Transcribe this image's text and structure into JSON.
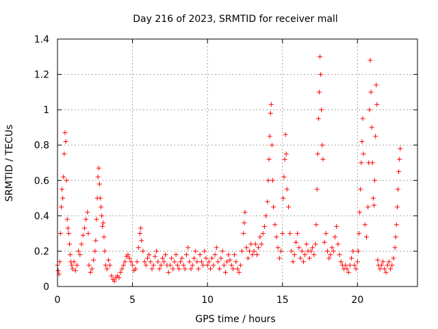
{
  "chart_data": {
    "type": "scatter",
    "title": "Day 216 of 2023, SRMTID for receiver mall",
    "xlabel": "GPS time / hours",
    "ylabel": "SRMTID / TECUs",
    "xlim": [
      0,
      24
    ],
    "ylim": [
      0,
      1.4
    ],
    "xticks": [
      0,
      5,
      10,
      15,
      20
    ],
    "yticks": [
      0,
      0.2,
      0.4,
      0.6,
      0.8,
      1,
      1.2,
      1.4
    ],
    "xtick_labels": [
      "0",
      "5",
      "10",
      "15",
      "20"
    ],
    "ytick_labels": [
      "0",
      "0.2",
      "0.4",
      "0.6",
      "0.8",
      "1",
      "1.2",
      "1.4"
    ],
    "grid": true,
    "marker": "+",
    "series": [
      {
        "name": "SRMTID",
        "color": "#ff0000",
        "points": [
          [
            0.0,
            0.12
          ],
          [
            0.05,
            0.09
          ],
          [
            0.1,
            0.07
          ],
          [
            0.15,
            0.14
          ],
          [
            0.2,
            0.3
          ],
          [
            0.25,
            0.45
          ],
          [
            0.3,
            0.55
          ],
          [
            0.35,
            0.5
          ],
          [
            0.4,
            0.62
          ],
          [
            0.45,
            0.75
          ],
          [
            0.5,
            0.87
          ],
          [
            0.55,
            0.82
          ],
          [
            0.6,
            0.6
          ],
          [
            0.65,
            0.38
          ],
          [
            0.7,
            0.33
          ],
          [
            0.75,
            0.3
          ],
          [
            0.8,
            0.24
          ],
          [
            0.85,
            0.18
          ],
          [
            0.9,
            0.14
          ],
          [
            0.95,
            0.12
          ],
          [
            1.0,
            0.1
          ],
          [
            1.1,
            0.14
          ],
          [
            1.2,
            0.09
          ],
          [
            1.3,
            0.12
          ],
          [
            1.4,
            0.2
          ],
          [
            1.5,
            0.18
          ],
          [
            1.6,
            0.24
          ],
          [
            1.7,
            0.29
          ],
          [
            1.8,
            0.33
          ],
          [
            1.9,
            0.38
          ],
          [
            2.0,
            0.42
          ],
          [
            2.05,
            0.3
          ],
          [
            2.1,
            0.12
          ],
          [
            2.2,
            0.08
          ],
          [
            2.3,
            0.1
          ],
          [
            2.4,
            0.15
          ],
          [
            2.5,
            0.2
          ],
          [
            2.55,
            0.26
          ],
          [
            2.6,
            0.38
          ],
          [
            2.65,
            0.5
          ],
          [
            2.7,
            0.62
          ],
          [
            2.75,
            0.67
          ],
          [
            2.8,
            0.58
          ],
          [
            2.85,
            0.5
          ],
          [
            2.9,
            0.45
          ],
          [
            2.95,
            0.4
          ],
          [
            3.0,
            0.34
          ],
          [
            3.05,
            0.36
          ],
          [
            3.1,
            0.28
          ],
          [
            3.15,
            0.2
          ],
          [
            3.2,
            0.12
          ],
          [
            3.3,
            0.1
          ],
          [
            3.4,
            0.15
          ],
          [
            3.5,
            0.12
          ],
          [
            3.6,
            0.06
          ],
          [
            3.7,
            0.04
          ],
          [
            3.8,
            0.03
          ],
          [
            3.9,
            0.05
          ],
          [
            4.0,
            0.06
          ],
          [
            4.1,
            0.05
          ],
          [
            4.2,
            0.08
          ],
          [
            4.3,
            0.1
          ],
          [
            4.4,
            0.12
          ],
          [
            4.5,
            0.14
          ],
          [
            4.6,
            0.17
          ],
          [
            4.7,
            0.18
          ],
          [
            4.8,
            0.16
          ],
          [
            4.9,
            0.14
          ],
          [
            5.0,
            0.12
          ],
          [
            5.1,
            0.09
          ],
          [
            5.2,
            0.1
          ],
          [
            5.3,
            0.14
          ],
          [
            5.4,
            0.22
          ],
          [
            5.5,
            0.3
          ],
          [
            5.55,
            0.33
          ],
          [
            5.6,
            0.26
          ],
          [
            5.7,
            0.2
          ],
          [
            5.8,
            0.14
          ],
          [
            5.9,
            0.12
          ],
          [
            6.0,
            0.16
          ],
          [
            6.1,
            0.18
          ],
          [
            6.2,
            0.14
          ],
          [
            6.3,
            0.1
          ],
          [
            6.4,
            0.12
          ],
          [
            6.5,
            0.17
          ],
          [
            6.6,
            0.2
          ],
          [
            6.7,
            0.14
          ],
          [
            6.8,
            0.1
          ],
          [
            6.9,
            0.12
          ],
          [
            7.0,
            0.16
          ],
          [
            7.1,
            0.14
          ],
          [
            7.2,
            0.18
          ],
          [
            7.3,
            0.12
          ],
          [
            7.4,
            0.08
          ],
          [
            7.5,
            0.12
          ],
          [
            7.6,
            0.16
          ],
          [
            7.7,
            0.1
          ],
          [
            7.8,
            0.14
          ],
          [
            7.9,
            0.18
          ],
          [
            8.0,
            0.12
          ],
          [
            8.1,
            0.1
          ],
          [
            8.2,
            0.14
          ],
          [
            8.3,
            0.16
          ],
          [
            8.4,
            0.12
          ],
          [
            8.5,
            0.1
          ],
          [
            8.6,
            0.18
          ],
          [
            8.7,
            0.22
          ],
          [
            8.8,
            0.14
          ],
          [
            8.9,
            0.1
          ],
          [
            9.0,
            0.12
          ],
          [
            9.1,
            0.16
          ],
          [
            9.2,
            0.2
          ],
          [
            9.3,
            0.14
          ],
          [
            9.4,
            0.1
          ],
          [
            9.5,
            0.18
          ],
          [
            9.6,
            0.14
          ],
          [
            9.7,
            0.12
          ],
          [
            9.8,
            0.2
          ],
          [
            9.9,
            0.16
          ],
          [
            10.0,
            0.12
          ],
          [
            10.1,
            0.14
          ],
          [
            10.2,
            0.1
          ],
          [
            10.3,
            0.16
          ],
          [
            10.4,
            0.12
          ],
          [
            10.5,
            0.18
          ],
          [
            10.6,
            0.22
          ],
          [
            10.7,
            0.14
          ],
          [
            10.8,
            0.1
          ],
          [
            10.9,
            0.16
          ],
          [
            11.0,
            0.2
          ],
          [
            11.1,
            0.12
          ],
          [
            11.2,
            0.08
          ],
          [
            11.3,
            0.14
          ],
          [
            11.4,
            0.18
          ],
          [
            11.5,
            0.15
          ],
          [
            11.6,
            0.12
          ],
          [
            11.7,
            0.1
          ],
          [
            11.8,
            0.18
          ],
          [
            11.9,
            0.14
          ],
          [
            12.0,
            0.1
          ],
          [
            12.1,
            0.08
          ],
          [
            12.2,
            0.12
          ],
          [
            12.3,
            0.2
          ],
          [
            12.4,
            0.3
          ],
          [
            12.45,
            0.36
          ],
          [
            12.5,
            0.42
          ],
          [
            12.6,
            0.22
          ],
          [
            12.7,
            0.16
          ],
          [
            12.8,
            0.2
          ],
          [
            12.9,
            0.24
          ],
          [
            13.0,
            0.18
          ],
          [
            13.1,
            0.2
          ],
          [
            13.2,
            0.24
          ],
          [
            13.3,
            0.18
          ],
          [
            13.4,
            0.22
          ],
          [
            13.5,
            0.28
          ],
          [
            13.6,
            0.24
          ],
          [
            13.7,
            0.3
          ],
          [
            13.8,
            0.34
          ],
          [
            13.9,
            0.4
          ],
          [
            14.0,
            0.48
          ],
          [
            14.05,
            0.6
          ],
          [
            14.1,
            0.72
          ],
          [
            14.15,
            0.85
          ],
          [
            14.2,
            0.98
          ],
          [
            14.25,
            1.03
          ],
          [
            14.3,
            0.8
          ],
          [
            14.35,
            0.6
          ],
          [
            14.4,
            0.45
          ],
          [
            14.5,
            0.35
          ],
          [
            14.6,
            0.28
          ],
          [
            14.7,
            0.22
          ],
          [
            14.8,
            0.16
          ],
          [
            14.9,
            0.2
          ],
          [
            15.0,
            0.3
          ],
          [
            15.05,
            0.5
          ],
          [
            15.1,
            0.62
          ],
          [
            15.15,
            0.72
          ],
          [
            15.2,
            0.86
          ],
          [
            15.25,
            0.75
          ],
          [
            15.3,
            0.55
          ],
          [
            15.4,
            0.45
          ],
          [
            15.5,
            0.3
          ],
          [
            15.6,
            0.2
          ],
          [
            15.7,
            0.14
          ],
          [
            15.8,
            0.18
          ],
          [
            15.9,
            0.25
          ],
          [
            16.0,
            0.3
          ],
          [
            16.1,
            0.22
          ],
          [
            16.2,
            0.16
          ],
          [
            16.3,
            0.2
          ],
          [
            16.4,
            0.14
          ],
          [
            16.5,
            0.18
          ],
          [
            16.6,
            0.24
          ],
          [
            16.7,
            0.2
          ],
          [
            16.8,
            0.16
          ],
          [
            16.9,
            0.2
          ],
          [
            17.0,
            0.22
          ],
          [
            17.1,
            0.18
          ],
          [
            17.2,
            0.24
          ],
          [
            17.25,
            0.35
          ],
          [
            17.3,
            0.55
          ],
          [
            17.35,
            0.75
          ],
          [
            17.4,
            0.95
          ],
          [
            17.45,
            1.1
          ],
          [
            17.5,
            1.3
          ],
          [
            17.55,
            1.2
          ],
          [
            17.6,
            1.0
          ],
          [
            17.65,
            0.8
          ],
          [
            17.7,
            0.72
          ],
          [
            17.8,
            0.25
          ],
          [
            17.9,
            0.3
          ],
          [
            18.0,
            0.2
          ],
          [
            18.1,
            0.16
          ],
          [
            18.2,
            0.18
          ],
          [
            18.3,
            0.22
          ],
          [
            18.4,
            0.2
          ],
          [
            18.5,
            0.28
          ],
          [
            18.6,
            0.34
          ],
          [
            18.7,
            0.24
          ],
          [
            18.8,
            0.18
          ],
          [
            18.9,
            0.14
          ],
          [
            19.0,
            0.12
          ],
          [
            19.1,
            0.1
          ],
          [
            19.2,
            0.12
          ],
          [
            19.3,
            0.1
          ],
          [
            19.4,
            0.08
          ],
          [
            19.5,
            0.12
          ],
          [
            19.6,
            0.16
          ],
          [
            19.7,
            0.2
          ],
          [
            19.8,
            0.12
          ],
          [
            19.9,
            0.1
          ],
          [
            20.0,
            0.14
          ],
          [
            20.05,
            0.2
          ],
          [
            20.1,
            0.3
          ],
          [
            20.15,
            0.42
          ],
          [
            20.2,
            0.55
          ],
          [
            20.25,
            0.7
          ],
          [
            20.3,
            0.82
          ],
          [
            20.35,
            0.95
          ],
          [
            20.4,
            0.75
          ],
          [
            20.5,
            0.35
          ],
          [
            20.6,
            0.28
          ],
          [
            20.7,
            0.45
          ],
          [
            20.75,
            0.7
          ],
          [
            20.8,
            1.0
          ],
          [
            20.85,
            1.28
          ],
          [
            20.9,
            1.1
          ],
          [
            20.95,
            0.9
          ],
          [
            21.0,
            0.7
          ],
          [
            21.05,
            0.5
          ],
          [
            21.1,
            0.46
          ],
          [
            21.15,
            0.6
          ],
          [
            21.2,
            0.85
          ],
          [
            21.25,
            1.14
          ],
          [
            21.3,
            1.03
          ],
          [
            21.35,
            0.15
          ],
          [
            21.4,
            0.12
          ],
          [
            21.5,
            0.1
          ],
          [
            21.6,
            0.12
          ],
          [
            21.7,
            0.14
          ],
          [
            21.8,
            0.1
          ],
          [
            21.9,
            0.08
          ],
          [
            22.0,
            0.12
          ],
          [
            22.1,
            0.14
          ],
          [
            22.2,
            0.1
          ],
          [
            22.3,
            0.12
          ],
          [
            22.4,
            0.16
          ],
          [
            22.5,
            0.22
          ],
          [
            22.55,
            0.28
          ],
          [
            22.6,
            0.35
          ],
          [
            22.65,
            0.45
          ],
          [
            22.7,
            0.55
          ],
          [
            22.75,
            0.65
          ],
          [
            22.8,
            0.72
          ],
          [
            22.85,
            0.78
          ]
        ]
      }
    ]
  }
}
